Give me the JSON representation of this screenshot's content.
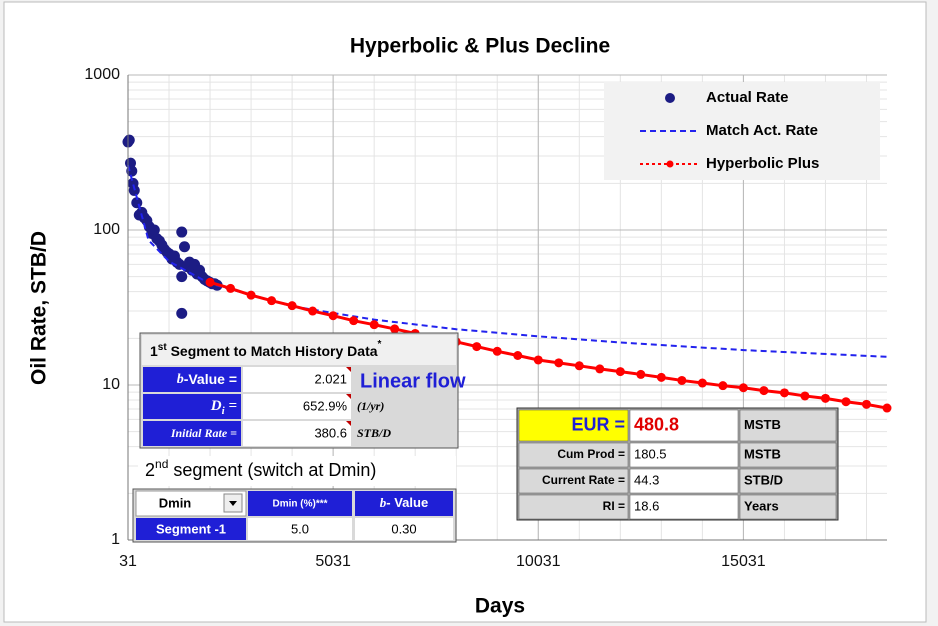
{
  "chart_data": {
    "type": "scatter",
    "title": "Hyperbolic & Plus Decline",
    "x_label": "Days",
    "y_label": "Oil Rate, STB/D",
    "xlim": [
      31,
      18531
    ],
    "xticks": [
      31,
      5031,
      10031,
      15031
    ],
    "ylim": [
      1,
      1000
    ],
    "yticks": [
      1,
      10,
      100,
      1000
    ],
    "log_y": true,
    "grid": true,
    "legend": "upper right",
    "series": [
      {
        "name": "Actual Rate",
        "color": "#1c1c84",
        "marker": true,
        "line": "none",
        "x": [
          31,
          62,
          92,
          123,
          153,
          184,
          245,
          306,
          367,
          428,
          490,
          551,
          612,
          673,
          734,
          796,
          857,
          918,
          980,
          1041,
          1102,
          1163,
          1224,
          1286,
          1341,
          1341,
          1341,
          1408,
          1469,
          1530,
          1592,
          1653,
          1714,
          1775,
          1836,
          1898,
          1959,
          2020,
          2081,
          2142,
          2203
        ],
        "values": [
          370,
          380,
          270,
          240,
          200,
          180,
          150,
          125,
          130,
          120,
          115,
          105,
          95,
          100,
          88,
          85,
          80,
          75,
          72,
          70,
          65,
          68,
          62,
          60,
          97,
          29,
          50,
          78,
          58,
          62,
          55,
          60,
          52,
          55,
          50,
          48,
          47,
          46,
          45,
          45,
          44
        ]
      },
      {
        "name": "Match Act. Rate",
        "color": "#2222ee",
        "marker": false,
        "line": "dashed",
        "x": [
          31,
          531,
          1031,
          2031,
          4031,
          6031,
          8031,
          10031,
          12031,
          15031,
          18531
        ],
        "values": [
          262,
          86,
          62.7,
          45.1,
          32.2,
          26.4,
          22.9,
          20.6,
          18.8,
          16.8,
          15.2
        ]
      },
      {
        "name": "Hyperbolic Plus",
        "color": "#ff0000",
        "marker": true,
        "line": "dashed",
        "x": [
          2031,
          2531,
          3031,
          3531,
          4031,
          4531,
          5031,
          5531,
          6031,
          6531,
          7031,
          7531,
          8031,
          8531,
          9031,
          9531,
          10031,
          10531,
          11031,
          11531,
          12031,
          12531,
          13031,
          13531,
          14031,
          14531,
          15031,
          15531,
          16031,
          16531,
          17031,
          17531,
          18031,
          18531
        ],
        "values": [
          46,
          42,
          38,
          35,
          32.5,
          30,
          28,
          26,
          24.5,
          23,
          21.5,
          20.2,
          19,
          17.7,
          16.5,
          15.5,
          14.5,
          13.9,
          13.3,
          12.7,
          12.2,
          11.7,
          11.2,
          10.7,
          10.3,
          9.9,
          9.6,
          9.2,
          8.9,
          8.5,
          8.2,
          7.8,
          7.5,
          7.1
        ]
      }
    ]
  },
  "segment1": {
    "title": {
      "ordinal": "1",
      "suffix": "st",
      "text": " Segment to Match History Data",
      "mark": "*"
    },
    "b_label": {
      "main": "b",
      "tail": "-Value ="
    },
    "b_value": "2.021",
    "di_label": {
      "main": "D",
      "sub": "i",
      "tail": " ="
    },
    "di_value": "652.9%",
    "di_unit": "(1/yr)",
    "qi_label": "Initial Rate =",
    "qi_value": "380.6",
    "qi_unit": "STB/D",
    "annotation": "Linear flow"
  },
  "segment2": {
    "title": {
      "ordinal": "2",
      "suffix": "nd",
      "text": " segment (switch at Dmin)"
    },
    "select": "Dmin",
    "header_dmin": "Dmin (%)***",
    "header_b": {
      "main": "b",
      "tail": "- Value"
    },
    "row_label": "Segment -1",
    "dmin": "5.0",
    "b": "0.30"
  },
  "results": {
    "rows": [
      [
        "EUR =",
        "480.8",
        "MSTB"
      ],
      [
        "Cum Prod =",
        "180.5",
        "MSTB"
      ],
      [
        "Current Rate =",
        "44.3",
        "STB/D"
      ],
      [
        "RI =",
        "18.6",
        "Years"
      ]
    ]
  }
}
